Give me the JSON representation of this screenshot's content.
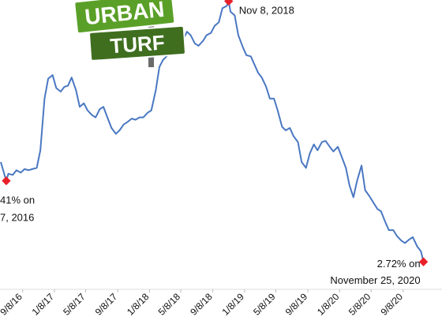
{
  "chart_data": {
    "type": "line",
    "color": "#4a78c2",
    "marker_color": "#e8202a",
    "xlim": [
      "2016-06-13",
      "2021-02-04"
    ],
    "ylim": [
      2.58,
      4.95
    ],
    "xticks": [
      {
        "value": "2016-09-08",
        "label": "9/8/16"
      },
      {
        "value": "2017-01-08",
        "label": "1/8/17"
      },
      {
        "value": "2017-05-08",
        "label": "5/8/17"
      },
      {
        "value": "2017-09-08",
        "label": "9/8/17"
      },
      {
        "value": "2018-01-08",
        "label": "1/8/18"
      },
      {
        "value": "2018-05-08",
        "label": "5/8/18"
      },
      {
        "value": "2018-09-08",
        "label": "9/8/18"
      },
      {
        "value": "2019-01-08",
        "label": "1/8/19"
      },
      {
        "value": "2019-05-08",
        "label": "5/8/19"
      },
      {
        "value": "2019-09-08",
        "label": "9/8/19"
      },
      {
        "value": "2020-01-08",
        "label": "1/8/20"
      },
      {
        "value": "2020-05-08",
        "label": "5/8/20"
      },
      {
        "value": "2020-09-08",
        "label": "9/8/20"
      }
    ],
    "x": [
      "2016-06-16",
      "2016-07-07",
      "2016-07-15",
      "2016-08-01",
      "2016-08-15",
      "2016-09-01",
      "2016-09-15",
      "2016-10-01",
      "2016-10-15",
      "2016-11-01",
      "2016-11-15",
      "2016-12-01",
      "2016-12-15",
      "2017-01-01",
      "2017-01-15",
      "2017-02-01",
      "2017-02-15",
      "2017-03-01",
      "2017-03-15",
      "2017-04-01",
      "2017-04-15",
      "2017-05-01",
      "2017-05-15",
      "2017-06-01",
      "2017-06-15",
      "2017-07-01",
      "2017-07-15",
      "2017-08-01",
      "2017-08-15",
      "2017-09-01",
      "2017-09-15",
      "2017-10-01",
      "2017-10-15",
      "2017-11-01",
      "2017-11-15",
      "2017-12-01",
      "2017-12-15",
      "2018-01-01",
      "2018-01-15",
      "2018-02-01",
      "2018-02-15",
      "2018-03-01",
      "2018-03-15",
      "2018-04-01",
      "2018-04-15",
      "2018-05-01",
      "2018-05-15",
      "2018-06-01",
      "2018-06-15",
      "2018-07-01",
      "2018-07-15",
      "2018-08-01",
      "2018-08-15",
      "2018-09-01",
      "2018-09-15",
      "2018-10-01",
      "2018-10-15",
      "2018-11-01",
      "2018-11-08",
      "2018-11-15",
      "2018-12-01",
      "2018-12-15",
      "2019-01-01",
      "2019-01-15",
      "2019-02-01",
      "2019-02-15",
      "2019-03-01",
      "2019-03-15",
      "2019-04-01",
      "2019-04-15",
      "2019-05-01",
      "2019-05-15",
      "2019-06-01",
      "2019-06-15",
      "2019-07-01",
      "2019-07-15",
      "2019-08-01",
      "2019-08-15",
      "2019-09-01",
      "2019-09-15",
      "2019-10-01",
      "2019-10-15",
      "2019-11-01",
      "2019-11-15",
      "2019-12-01",
      "2019-12-15",
      "2020-01-01",
      "2020-01-15",
      "2020-02-01",
      "2020-02-15",
      "2020-03-01",
      "2020-03-15",
      "2020-04-01",
      "2020-04-15",
      "2020-05-01",
      "2020-05-15",
      "2020-06-01",
      "2020-06-15",
      "2020-07-01",
      "2020-07-15",
      "2020-08-01",
      "2020-08-15",
      "2020-09-01",
      "2020-09-15",
      "2020-10-01",
      "2020-10-15",
      "2020-11-01",
      "2020-11-15",
      "2020-11-25"
    ],
    "values": [
      3.57,
      3.41,
      3.47,
      3.46,
      3.5,
      3.48,
      3.51,
      3.5,
      3.51,
      3.52,
      3.67,
      4.11,
      4.28,
      4.31,
      4.2,
      4.17,
      4.21,
      4.22,
      4.29,
      4.18,
      4.04,
      4.07,
      4.01,
      3.97,
      3.95,
      4.02,
      4.04,
      3.94,
      3.86,
      3.81,
      3.84,
      3.89,
      3.91,
      3.94,
      3.93,
      3.95,
      3.95,
      3.99,
      4.01,
      4.18,
      4.38,
      4.44,
      4.47,
      4.55,
      4.58,
      4.63,
      4.6,
      4.68,
      4.65,
      4.58,
      4.56,
      4.6,
      4.65,
      4.67,
      4.73,
      4.76,
      4.88,
      4.9,
      4.94,
      4.85,
      4.82,
      4.65,
      4.55,
      4.48,
      4.47,
      4.4,
      4.33,
      4.29,
      4.21,
      4.11,
      4.11,
      4.01,
      3.87,
      3.84,
      3.86,
      3.79,
      3.74,
      3.57,
      3.52,
      3.64,
      3.72,
      3.67,
      3.74,
      3.75,
      3.7,
      3.66,
      3.7,
      3.62,
      3.52,
      3.37,
      3.27,
      3.41,
      3.54,
      3.33,
      3.28,
      3.23,
      3.17,
      3.15,
      3.06,
      2.99,
      2.99,
      2.94,
      2.9,
      2.88,
      2.91,
      2.93,
      2.85,
      2.81,
      2.72
    ],
    "annotations": [
      {
        "x": "2016-07-07",
        "y": 3.41,
        "lines": [
          "41% on",
          "7, 2016"
        ],
        "align": "left"
      },
      {
        "x": "2018-11-08",
        "y": 4.94,
        "lines": [
          "Nov 8, 2018"
        ],
        "align": "left"
      },
      {
        "x": "2020-11-25",
        "y": 2.72,
        "lines": [
          "2.72% on",
          "November 25, 2020"
        ],
        "align": "right"
      }
    ],
    "logo": [
      "URBAN",
      "TURF"
    ]
  }
}
